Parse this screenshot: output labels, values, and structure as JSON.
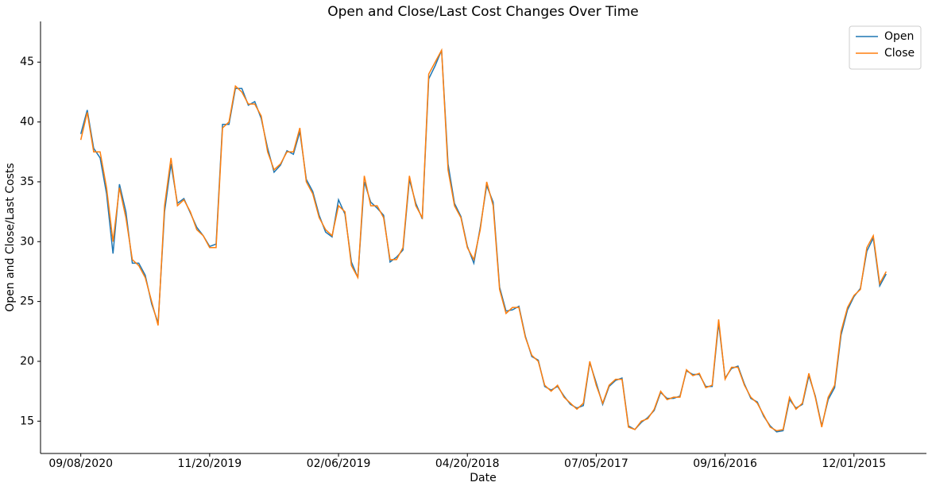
{
  "chart_data": {
    "type": "line",
    "title": "Open and Close/Last Cost Changes Over Time",
    "x_label": "Date",
    "y_label": "Open and Close/Last Costs",
    "categories": [
      "09/08/2020",
      null,
      null,
      null,
      null,
      null,
      null,
      null,
      null,
      null,
      null,
      null,
      null,
      null,
      null,
      null,
      null,
      null,
      null,
      null,
      "11/20/2019",
      null,
      null,
      null,
      null,
      null,
      null,
      null,
      null,
      null,
      null,
      null,
      null,
      null,
      null,
      null,
      null,
      null,
      null,
      null,
      "02/06/2019",
      null,
      null,
      null,
      null,
      null,
      null,
      null,
      null,
      null,
      null,
      null,
      null,
      null,
      null,
      null,
      null,
      null,
      null,
      null,
      "04/20/2018",
      null,
      null,
      null,
      null,
      null,
      null,
      null,
      null,
      null,
      null,
      null,
      null,
      null,
      null,
      null,
      null,
      null,
      null,
      null,
      "07/05/2017",
      null,
      null,
      null,
      null,
      null,
      null,
      null,
      null,
      null,
      null,
      null,
      null,
      null,
      null,
      null,
      null,
      null,
      null,
      null,
      "09/16/2016",
      null,
      null,
      null,
      null,
      null,
      null,
      null,
      null,
      null,
      null,
      null,
      null,
      null,
      null,
      null,
      null,
      null,
      null,
      null,
      "12/01/2015",
      null,
      null,
      null,
      null,
      null
    ],
    "series": [
      {
        "name": "Open",
        "color": "#1f77b4",
        "values": [
          39,
          41,
          37.8,
          37,
          34,
          29,
          34.8,
          32.5,
          28.2,
          28.2,
          27.2,
          24.8,
          23.2,
          32.5,
          36.5,
          33.2,
          33.6,
          32.4,
          31.2,
          30.5,
          29.6,
          29.8,
          39.8,
          39.8,
          42.8,
          42.8,
          41.4,
          41.7,
          40.3,
          37.8,
          35.8,
          36.4,
          37.6,
          37.3,
          39.2,
          35.2,
          34.2,
          32.2,
          30.8,
          30.4,
          33.5,
          32.3,
          28.3,
          27,
          35,
          33.3,
          32.8,
          32.2,
          28.3,
          28.7,
          29.3,
          35.2,
          33.2,
          31.9,
          43.6,
          44.7,
          46,
          36.5,
          33.2,
          32.1,
          29.6,
          28.2,
          31.2,
          34.7,
          33.3,
          26.2,
          24.2,
          24.3,
          24.6,
          22.1,
          20.4,
          20.1,
          17.9,
          17.6,
          17.9,
          17.1,
          16.4,
          16.1,
          16.3,
          19.9,
          18.2,
          16.4,
          17.9,
          18.4,
          18.6,
          14.6,
          14.3,
          14.9,
          15.3,
          15.9,
          17.4,
          16.9,
          16.9,
          17.1,
          19.2,
          18.9,
          18.9,
          17.9,
          17.9,
          23.2,
          18.6,
          19.4,
          19.6,
          18.1,
          16.9,
          16.6,
          15.4,
          14.6,
          14.1,
          14.2,
          16.8,
          16.1,
          16.4,
          18.8,
          17.1,
          14.6,
          16.8,
          17.8,
          22.2,
          24.3,
          25.4,
          26.1,
          29.2,
          30.3,
          26.3,
          27.3
        ]
      },
      {
        "name": "Close",
        "color": "#ff7f0e",
        "values": [
          38.5,
          40.8,
          37.5,
          37.5,
          34.5,
          30,
          34.5,
          32,
          28.5,
          28,
          27,
          25,
          23,
          33,
          37,
          33,
          33.5,
          32.5,
          31,
          30.5,
          29.5,
          29.5,
          39.5,
          40,
          43,
          42.5,
          41.5,
          41.5,
          40.5,
          37.5,
          36,
          36.5,
          37.5,
          37.5,
          39.5,
          35,
          34,
          32,
          31,
          30.5,
          33,
          32.5,
          28,
          27,
          35.5,
          33,
          33,
          32,
          28.5,
          28.5,
          29.5,
          35.5,
          33,
          32,
          44,
          45,
          46,
          36,
          33,
          32,
          29.5,
          28.5,
          31,
          35,
          33,
          26,
          24,
          24.5,
          24.5,
          22,
          20.5,
          20,
          18,
          17.5,
          18,
          17,
          16.5,
          16,
          16.5,
          20,
          18,
          16.5,
          18,
          18.5,
          18.5,
          14.5,
          14.3,
          15,
          15.2,
          16,
          17.5,
          16.8,
          17,
          17,
          19.3,
          18.8,
          19,
          17.8,
          18,
          23.5,
          18.5,
          19.5,
          19.5,
          18,
          17,
          16.5,
          15.5,
          14.5,
          14.2,
          14.3,
          17,
          16,
          16.5,
          19,
          17,
          14.5,
          17,
          18,
          22.5,
          24.5,
          25.5,
          26,
          29.5,
          30.5,
          26.5,
          27.5
        ]
      }
    ],
    "ylim": [
      12.3,
      48.4
    ],
    "yticks": [
      15,
      20,
      25,
      30,
      35,
      40,
      45
    ],
    "legend": "upper right"
  }
}
